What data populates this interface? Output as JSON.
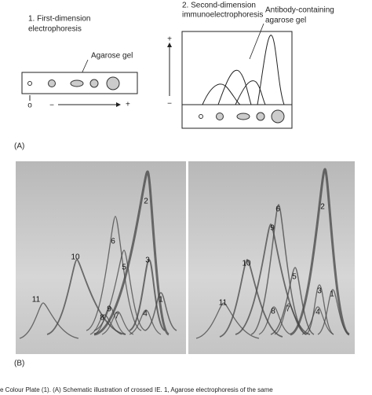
{
  "panel_a": {
    "step1": [
      "1. First-dimension",
      "electrophoresis"
    ],
    "agarose_label": "Agarose gel",
    "origin_label": "o",
    "minus": "−",
    "plus": "+",
    "step2": [
      "2. Second-dimension",
      "immunoelectrophoresis"
    ],
    "antibody_label": [
      "Antibody-containing",
      "agarose gel"
    ],
    "axis_plus": "+",
    "axis_minus": "−",
    "label": "(A)"
  },
  "panel_b": {
    "label": "(B)",
    "left_peaks": [
      "2",
      "3",
      "1",
      "6",
      "5",
      "10",
      "11",
      "9",
      "8",
      "7",
      "4"
    ],
    "right_peaks": [
      "2",
      "6",
      "9",
      "10",
      "5",
      "3",
      "1",
      "11",
      "8",
      "7",
      "4"
    ]
  },
  "caption": "e Colour Plate (1). (A) Schematic illustration of crossed IE. 1, Agarose electrophoresis of the same"
}
